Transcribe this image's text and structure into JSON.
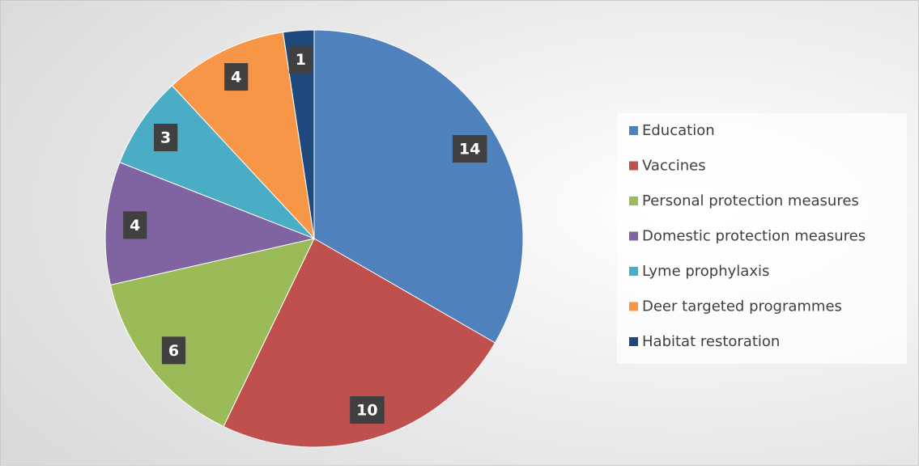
{
  "chart_data": {
    "type": "pie",
    "categories": [
      "Education",
      "Vaccines",
      "Personal protection measures",
      "Domestic protection measures",
      "Lyme prophylaxis",
      "Deer targeted programmes",
      "Habitat restoration"
    ],
    "values": [
      14,
      10,
      6,
      4,
      3,
      4,
      1
    ],
    "colors": [
      "#4f81bd",
      "#c0504d",
      "#9bbb59",
      "#8064a2",
      "#4bacc6",
      "#f79646",
      "#1f497d"
    ],
    "legend": "right"
  }
}
